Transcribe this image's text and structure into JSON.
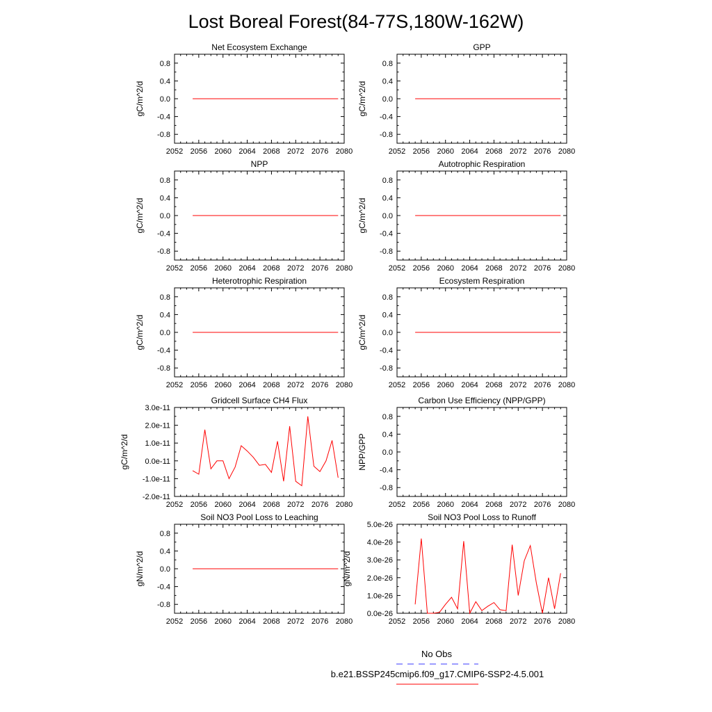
{
  "title": "Lost Boreal Forest(84-77S,180W-162W)",
  "colors": {
    "model_line": "#ff0000",
    "obs_line": "#3a3aff",
    "axis": "#000000"
  },
  "legend": {
    "obs_label": "No Obs",
    "model_label": "b.e21.BSSP245cmip6.f09_g17.CMIP6-SSP2-4.5.001"
  },
  "chart_data": [
    {
      "type": "line",
      "title": "Net Ecosystem Exchange",
      "xlabel": "",
      "ylabel": "gC/m^2/d",
      "xlim": [
        2052,
        2080
      ],
      "ylim": [
        -1,
        1
      ],
      "x_ticks": [
        "2052",
        "2056",
        "2060",
        "2064",
        "2068",
        "2072",
        "2076",
        "2080"
      ],
      "y_ticks": [
        {
          "v": 0.8,
          "label": "0.8"
        },
        {
          "v": 0.4,
          "label": "0.4"
        },
        {
          "v": 0.0,
          "label": "0.0"
        },
        {
          "v": -0.4,
          "label": "-0.4"
        },
        {
          "v": -0.8,
          "label": "-0.8"
        }
      ],
      "series": [
        {
          "x": [
            2055,
            2079
          ],
          "values": [
            0,
            0
          ]
        }
      ]
    },
    {
      "type": "line",
      "title": "GPP",
      "xlabel": "",
      "ylabel": "gC/m^2/d",
      "xlim": [
        2052,
        2080
      ],
      "ylim": [
        -1,
        1
      ],
      "x_ticks": [
        "2052",
        "2056",
        "2060",
        "2064",
        "2068",
        "2072",
        "2076",
        "2080"
      ],
      "y_ticks": [
        {
          "v": 0.8,
          "label": "0.8"
        },
        {
          "v": 0.4,
          "label": "0.4"
        },
        {
          "v": 0.0,
          "label": "0.0"
        },
        {
          "v": -0.4,
          "label": "-0.4"
        },
        {
          "v": -0.8,
          "label": "-0.8"
        }
      ],
      "series": [
        {
          "x": [
            2055,
            2079
          ],
          "values": [
            0,
            0
          ]
        }
      ]
    },
    {
      "type": "line",
      "title": "NPP",
      "xlabel": "",
      "ylabel": "gC/m^2/d",
      "xlim": [
        2052,
        2080
      ],
      "ylim": [
        -1,
        1
      ],
      "x_ticks": [
        "2052",
        "2056",
        "2060",
        "2064",
        "2068",
        "2072",
        "2076",
        "2080"
      ],
      "y_ticks": [
        {
          "v": 0.8,
          "label": "0.8"
        },
        {
          "v": 0.4,
          "label": "0.4"
        },
        {
          "v": 0.0,
          "label": "0.0"
        },
        {
          "v": -0.4,
          "label": "-0.4"
        },
        {
          "v": -0.8,
          "label": "-0.8"
        }
      ],
      "series": [
        {
          "x": [
            2055,
            2079
          ],
          "values": [
            0,
            0
          ]
        }
      ]
    },
    {
      "type": "line",
      "title": "Autotrophic Respiration",
      "xlabel": "",
      "ylabel": "gC/m^2/d",
      "xlim": [
        2052,
        2080
      ],
      "ylim": [
        -1,
        1
      ],
      "x_ticks": [
        "2052",
        "2056",
        "2060",
        "2064",
        "2068",
        "2072",
        "2076",
        "2080"
      ],
      "y_ticks": [
        {
          "v": 0.8,
          "label": "0.8"
        },
        {
          "v": 0.4,
          "label": "0.4"
        },
        {
          "v": 0.0,
          "label": "0.0"
        },
        {
          "v": -0.4,
          "label": "-0.4"
        },
        {
          "v": -0.8,
          "label": "-0.8"
        }
      ],
      "series": [
        {
          "x": [
            2055,
            2079
          ],
          "values": [
            0,
            0
          ]
        }
      ]
    },
    {
      "type": "line",
      "title": "Heterotrophic Respiration",
      "xlabel": "",
      "ylabel": "gC/m^2/d",
      "xlim": [
        2052,
        2080
      ],
      "ylim": [
        -1,
        1
      ],
      "x_ticks": [
        "2052",
        "2056",
        "2060",
        "2064",
        "2068",
        "2072",
        "2076",
        "2080"
      ],
      "y_ticks": [
        {
          "v": 0.8,
          "label": "0.8"
        },
        {
          "v": 0.4,
          "label": "0.4"
        },
        {
          "v": 0.0,
          "label": "0.0"
        },
        {
          "v": -0.4,
          "label": "-0.4"
        },
        {
          "v": -0.8,
          "label": "-0.8"
        }
      ],
      "series": [
        {
          "x": [
            2055,
            2079
          ],
          "values": [
            0,
            0
          ]
        }
      ]
    },
    {
      "type": "line",
      "title": "Ecosystem Respiration",
      "xlabel": "",
      "ylabel": "gC/m^2/d",
      "xlim": [
        2052,
        2080
      ],
      "ylim": [
        -1,
        1
      ],
      "x_ticks": [
        "2052",
        "2056",
        "2060",
        "2064",
        "2068",
        "2072",
        "2076",
        "2080"
      ],
      "y_ticks": [
        {
          "v": 0.8,
          "label": "0.8"
        },
        {
          "v": 0.4,
          "label": "0.4"
        },
        {
          "v": 0.0,
          "label": "0.0"
        },
        {
          "v": -0.4,
          "label": "-0.4"
        },
        {
          "v": -0.8,
          "label": "-0.8"
        }
      ],
      "series": [
        {
          "x": [
            2055,
            2079
          ],
          "values": [
            0,
            0
          ]
        }
      ]
    },
    {
      "type": "line",
      "title": "Gridcell Surface CH4 Flux",
      "xlabel": "",
      "ylabel": "gC/m^2/d",
      "xlim": [
        2052,
        2080
      ],
      "ylim": [
        -2e-11,
        3e-11
      ],
      "x_ticks": [
        "2052",
        "2056",
        "2060",
        "2064",
        "2068",
        "2072",
        "2076",
        "2080"
      ],
      "y_ticks": [
        {
          "v": 3e-11,
          "label": "3.0e-11"
        },
        {
          "v": 2e-11,
          "label": "2.0e-11"
        },
        {
          "v": 1e-11,
          "label": "1.0e-11"
        },
        {
          "v": 0,
          "label": "0.0e-11"
        },
        {
          "v": -1e-11,
          "label": "-1.0e-11"
        },
        {
          "v": -2e-11,
          "label": "-2.0e-11"
        }
      ],
      "series": [
        {
          "x": [
            2055,
            2056,
            2057,
            2058,
            2059,
            2060,
            2061,
            2062,
            2063,
            2064,
            2065,
            2066,
            2067,
            2068,
            2069,
            2070,
            2071,
            2072,
            2073,
            2074,
            2075,
            2076,
            2077,
            2078,
            2079
          ],
          "values": [
            -5.5e-12,
            -7.5e-12,
            1.75e-11,
            -4.5e-12,
            0,
            0,
            -1e-11,
            -3.5e-12,
            8.5e-12,
            5.5e-12,
            2e-12,
            -2.5e-12,
            -2e-12,
            -6.5e-12,
            1.1e-11,
            -1.15e-11,
            1.95e-11,
            -1.15e-11,
            -1.4e-11,
            2.5e-11,
            -3e-12,
            -6e-12,
            0,
            1.15e-11,
            -9.5e-12
          ]
        }
      ]
    },
    {
      "type": "line",
      "title": "Carbon Use Efficiency (NPP/GPP)",
      "xlabel": "",
      "ylabel": "NPP/GPP",
      "xlim": [
        2052,
        2080
      ],
      "ylim": [
        -1,
        1
      ],
      "x_ticks": [
        "2052",
        "2056",
        "2060",
        "2064",
        "2068",
        "2072",
        "2076",
        "2080"
      ],
      "y_ticks": [
        {
          "v": 0.8,
          "label": "0.8"
        },
        {
          "v": 0.4,
          "label": "0.4"
        },
        {
          "v": 0.0,
          "label": "0.0"
        },
        {
          "v": -0.4,
          "label": "-0.4"
        },
        {
          "v": -0.8,
          "label": "-0.8"
        }
      ],
      "series": []
    },
    {
      "type": "line",
      "title": "Soil NO3 Pool Loss to Leaching",
      "xlabel": "",
      "ylabel": "gN/m^2/d",
      "xlim": [
        2052,
        2080
      ],
      "ylim": [
        -1,
        1
      ],
      "x_ticks": [
        "2052",
        "2056",
        "2060",
        "2064",
        "2068",
        "2072",
        "2076",
        "2080"
      ],
      "y_ticks": [
        {
          "v": 0.8,
          "label": "0.8"
        },
        {
          "v": 0.4,
          "label": "0.4"
        },
        {
          "v": 0.0,
          "label": "0.0"
        },
        {
          "v": -0.4,
          "label": "-0.4"
        },
        {
          "v": -0.8,
          "label": "-0.8"
        }
      ],
      "series": [
        {
          "x": [
            2055,
            2079
          ],
          "values": [
            0,
            0
          ]
        }
      ]
    },
    {
      "type": "line",
      "title": "Soil NO3 Pool Loss to Runoff",
      "xlabel": "",
      "ylabel": "gN/m^2/d",
      "xlim": [
        2052,
        2080
      ],
      "ylim": [
        0,
        5e-26
      ],
      "x_ticks": [
        "2052",
        "2056",
        "2060",
        "2064",
        "2068",
        "2072",
        "2076",
        "2080"
      ],
      "y_ticks": [
        {
          "v": 5e-26,
          "label": "5.0e-26"
        },
        {
          "v": 4e-26,
          "label": "4.0e-26"
        },
        {
          "v": 3e-26,
          "label": "3.0e-26"
        },
        {
          "v": 2e-26,
          "label": "2.0e-26"
        },
        {
          "v": 1e-26,
          "label": "1.0e-26"
        },
        {
          "v": 0,
          "label": "0.0e-26"
        }
      ],
      "series": [
        {
          "x": [
            2055,
            2056,
            2057,
            2058,
            2059,
            2060,
            2061,
            2062,
            2063,
            2064,
            2065,
            2066,
            2067,
            2068,
            2069,
            2070,
            2071,
            2072,
            2073,
            2074,
            2075,
            2076,
            2077,
            2078,
            2079
          ],
          "values": [
            5e-27,
            4.2e-26,
            0,
            0,
            5e-28,
            5e-27,
            9e-27,
            2.5e-27,
            4.05e-26,
            0,
            6.5e-27,
            1.5e-27,
            4e-27,
            6e-27,
            2e-27,
            1.5e-27,
            3.85e-26,
            1e-26,
            2.95e-26,
            3.8e-26,
            1.7e-26,
            0,
            2e-26,
            2.5e-27,
            2.25e-26
          ]
        }
      ]
    }
  ]
}
